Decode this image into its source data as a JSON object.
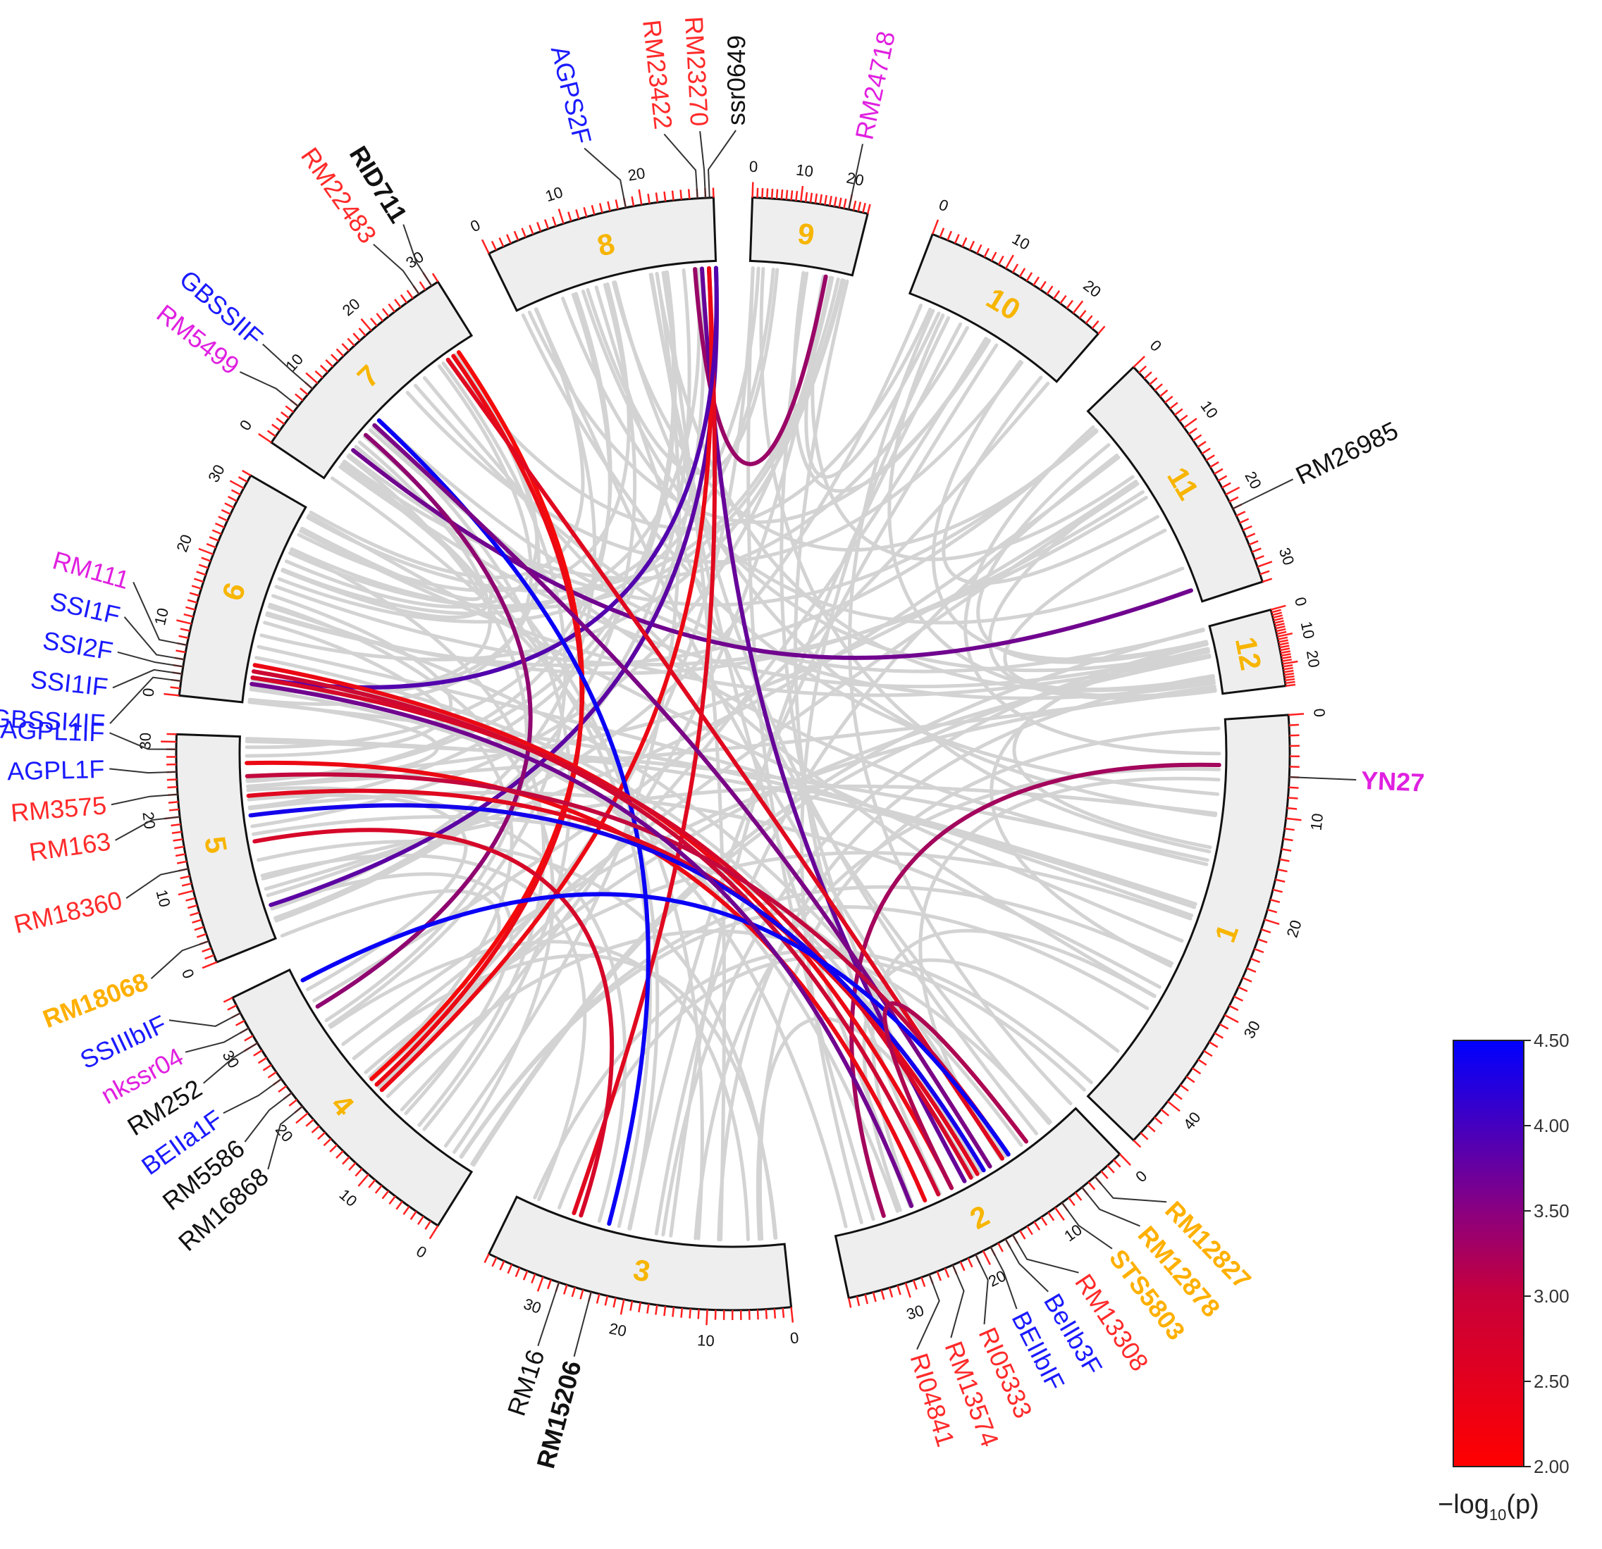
{
  "colors": {
    "segment_fill": "#eeeeee",
    "segment_stroke": "#111111",
    "tick": "#ff2020",
    "chr_label": "#f7b500",
    "grey_link": "#d3d3d3",
    "scale_low": "#ff0000",
    "scale_high": "#0000ff",
    "marker_black": "#111111",
    "marker_red": "#ff2a2a",
    "marker_blue": "#1a1aff",
    "marker_magenta": "#e020e0",
    "marker_orange": "#ffb000"
  },
  "chromosomes": [
    {
      "id": "1",
      "length": 45
    },
    {
      "id": "2",
      "length": 37
    },
    {
      "id": "3",
      "length": 37
    },
    {
      "id": "4",
      "length": 36
    },
    {
      "id": "5",
      "length": 31
    },
    {
      "id": "6",
      "length": 32
    },
    {
      "id": "7",
      "length": 31
    },
    {
      "id": "8",
      "length": 29
    },
    {
      "id": "9",
      "length": 24
    },
    {
      "id": "10",
      "length": 24
    },
    {
      "id": "11",
      "length": 32
    },
    {
      "id": "12",
      "length": 28
    }
  ],
  "markers": [
    {
      "name": "YN27",
      "chr": "1",
      "pos": 6,
      "color": "marker_magenta",
      "bold": true
    },
    {
      "name": "RM12827",
      "chr": "2",
      "pos": 4,
      "color": "marker_orange",
      "bold": true
    },
    {
      "name": "RM12878",
      "chr": "2",
      "pos": 6,
      "color": "marker_orange",
      "bold": true
    },
    {
      "name": "STS5803",
      "chr": "2",
      "pos": 9,
      "color": "marker_orange",
      "bold": true
    },
    {
      "name": "RM13308",
      "chr": "2",
      "pos": 16,
      "color": "marker_red",
      "bold": false
    },
    {
      "name": "BeIIb3F",
      "chr": "2",
      "pos": 17,
      "color": "marker_blue",
      "bold": false
    },
    {
      "name": "BEIIbIF",
      "chr": "2",
      "pos": 19,
      "color": "marker_blue",
      "bold": false
    },
    {
      "name": "RI05333",
      "chr": "2",
      "pos": 21,
      "color": "marker_red",
      "bold": false
    },
    {
      "name": "RM13574",
      "chr": "2",
      "pos": 24,
      "color": "marker_red",
      "bold": false
    },
    {
      "name": "RI04841",
      "chr": "2",
      "pos": 27,
      "color": "marker_red",
      "bold": false
    },
    {
      "name": "RM15206",
      "chr": "3",
      "pos": 24,
      "color": "marker_black",
      "bold": true
    },
    {
      "name": "RM16",
      "chr": "3",
      "pos": 28,
      "color": "marker_black",
      "bold": false
    },
    {
      "name": "RM16868",
      "chr": "4",
      "pos": 21,
      "color": "marker_black",
      "bold": false
    },
    {
      "name": "RM5586",
      "chr": "4",
      "pos": 23,
      "color": "marker_black",
      "bold": false
    },
    {
      "name": "BEIIa1F",
      "chr": "4",
      "pos": 25,
      "color": "marker_blue",
      "bold": false
    },
    {
      "name": "RM252",
      "chr": "4",
      "pos": 30,
      "color": "marker_black",
      "bold": false
    },
    {
      "name": "nkssr04",
      "chr": "4",
      "pos": 32,
      "color": "marker_magenta",
      "bold": false
    },
    {
      "name": "SSIIIbIF",
      "chr": "4",
      "pos": 34,
      "color": "marker_blue",
      "bold": false
    },
    {
      "name": "RM18068",
      "chr": "5",
      "pos": 3,
      "color": "marker_orange",
      "bold": true
    },
    {
      "name": "RM18360",
      "chr": "5",
      "pos": 13,
      "color": "marker_red",
      "bold": false
    },
    {
      "name": "RM163",
      "chr": "5",
      "pos": 20,
      "color": "marker_red",
      "bold": false
    },
    {
      "name": "RM3575",
      "chr": "5",
      "pos": 23,
      "color": "marker_red",
      "bold": false
    },
    {
      "name": "AGPL1F",
      "chr": "5",
      "pos": 26,
      "color": "marker_blue",
      "bold": false
    },
    {
      "name": "AGPL1IF",
      "chr": "5",
      "pos": 29,
      "color": "marker_blue",
      "bold": false
    },
    {
      "name": "GBSSI4IF",
      "chr": "6",
      "pos": 2,
      "color": "marker_blue",
      "bold": false
    },
    {
      "name": "SSI1IF",
      "chr": "6",
      "pos": 3,
      "color": "marker_blue",
      "bold": false
    },
    {
      "name": "SSI2F",
      "chr": "6",
      "pos": 4,
      "color": "marker_blue",
      "bold": false
    },
    {
      "name": "SSI1F",
      "chr": "6",
      "pos": 5,
      "color": "marker_blue",
      "bold": false
    },
    {
      "name": "RM111",
      "chr": "6",
      "pos": 7,
      "color": "marker_magenta",
      "bold": false
    },
    {
      "name": "RM5499",
      "chr": "7",
      "pos": 6,
      "color": "marker_magenta",
      "bold": false
    },
    {
      "name": "GBSSIIF",
      "chr": "7",
      "pos": 9,
      "color": "marker_blue",
      "bold": false
    },
    {
      "name": "RM22483",
      "chr": "7",
      "pos": 28,
      "color": "marker_red",
      "bold": false
    },
    {
      "name": "RID711",
      "chr": "7",
      "pos": 30,
      "color": "marker_black",
      "bold": true
    },
    {
      "name": "AGPS2F",
      "chr": "8",
      "pos": 18,
      "color": "marker_blue",
      "bold": false
    },
    {
      "name": "RM23422",
      "chr": "8",
      "pos": 27,
      "color": "marker_red",
      "bold": false
    },
    {
      "name": "RM23270",
      "chr": "8",
      "pos": 28,
      "color": "marker_red",
      "bold": false
    },
    {
      "name": "ssr0649",
      "chr": "8",
      "pos": 28.5,
      "color": "marker_black",
      "bold": false
    },
    {
      "name": "RM24718",
      "chr": "9",
      "pos": 20,
      "color": "marker_magenta",
      "bold": false
    },
    {
      "name": "RM26985",
      "chr": "11",
      "pos": 22,
      "color": "marker_black",
      "bold": false
    }
  ],
  "colored_links": [
    {
      "a": [
        "1",
        5
      ],
      "b": [
        "2",
        30
      ],
      "value": 2.9
    },
    {
      "a": [
        "9",
        18
      ],
      "b": [
        "8",
        26
      ],
      "value": 3.0
    },
    {
      "a": [
        "11",
        30
      ],
      "b": [
        "7",
        6
      ],
      "value": 3.4
    },
    {
      "a": [
        "8",
        27
      ],
      "b": [
        "2",
        18
      ],
      "value": 3.5
    },
    {
      "a": [
        "8",
        29
      ],
      "b": [
        "5",
        5
      ],
      "value": 3.6
    },
    {
      "a": [
        "8",
        28
      ],
      "b": [
        "3",
        29
      ],
      "value": 2.3
    },
    {
      "a": [
        "8",
        28
      ],
      "b": [
        "4",
        16
      ],
      "value": 2.2
    },
    {
      "a": [
        "8",
        29
      ],
      "b": [
        "6",
        4
      ],
      "value": 3.7
    },
    {
      "a": [
        "7",
        28
      ],
      "b": [
        "4",
        18
      ],
      "value": 2.1
    },
    {
      "a": [
        "7",
        27
      ],
      "b": [
        "4",
        17
      ],
      "value": 2.2
    },
    {
      "a": [
        "7",
        26
      ],
      "b": [
        "2",
        12
      ],
      "value": 2.3
    },
    {
      "a": [
        "7",
        12
      ],
      "b": [
        "3",
        24
      ],
      "value": 4.4
    },
    {
      "a": [
        "7",
        11
      ],
      "b": [
        "2",
        14
      ],
      "value": 3.3
    },
    {
      "a": [
        "7",
        9
      ],
      "b": [
        "4",
        30
      ],
      "value": 3.1
    },
    {
      "a": [
        "6",
        6
      ],
      "b": [
        "2",
        20
      ],
      "value": 2.2
    },
    {
      "a": [
        "6",
        5
      ],
      "b": [
        "2",
        22
      ],
      "value": 2.5
    },
    {
      "a": [
        "6",
        4
      ],
      "b": [
        "2",
        17
      ],
      "value": 2.4
    },
    {
      "a": [
        "5",
        27
      ],
      "b": [
        "2",
        24
      ],
      "value": 2.2
    },
    {
      "a": [
        "5",
        25
      ],
      "b": [
        "2",
        11
      ],
      "value": 2.6
    },
    {
      "a": [
        "5",
        22
      ],
      "b": [
        "2",
        16
      ],
      "value": 2.3
    },
    {
      "a": [
        "5",
        19
      ],
      "b": [
        "2",
        15
      ],
      "value": 4.3
    },
    {
      "a": [
        "5",
        15
      ],
      "b": [
        "3",
        28
      ],
      "value": 2.4
    },
    {
      "a": [
        "4",
        34
      ],
      "b": [
        "2",
        11
      ],
      "value": 4.4
    },
    {
      "a": [
        "6",
        3
      ],
      "b": [
        "2",
        26
      ],
      "value": 3.4
    },
    {
      "a": [
        "2",
        8
      ],
      "b": [
        "2",
        20
      ],
      "value": 2.8
    }
  ],
  "colorbar": {
    "ticks": [
      "4.50",
      "4.00",
      "3.50",
      "3.00",
      "2.50",
      "2.00"
    ],
    "min": 2.0,
    "max": 4.5,
    "title_main": "−log",
    "title_sub": "10",
    "title_end": "(p)"
  }
}
